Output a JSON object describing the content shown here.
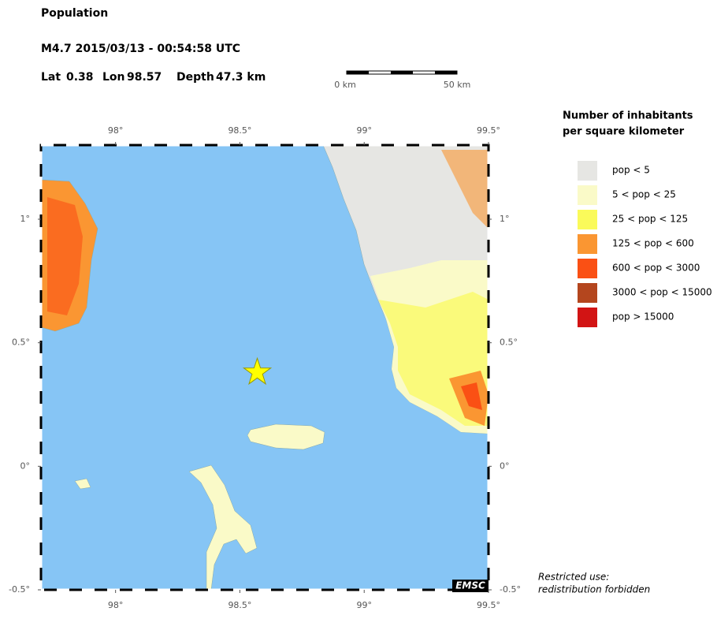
{
  "header": {
    "title": "Population",
    "event": "M4.7  2015/03/13 - 00:54:58 UTC",
    "lat_label": "Lat",
    "lat": 0.38,
    "lon_label": "Lon",
    "lon": 98.57,
    "depth_label": "Depth",
    "depth": "47.3 km"
  },
  "scale_bar": {
    "start": "0 km",
    "end": "50 km"
  },
  "map": {
    "xlim": [
      97.7,
      99.5
    ],
    "ylim": [
      -0.5,
      1.3
    ],
    "lon_ticks": [
      {
        "value": 98,
        "label": "98°"
      },
      {
        "value": 98.5,
        "label": "98.5°"
      },
      {
        "value": 99,
        "label": "99°"
      },
      {
        "value": 99.5,
        "label": "99.5°"
      }
    ],
    "lat_ticks": [
      {
        "value": 1,
        "label": "1°"
      },
      {
        "value": 0.5,
        "label": "0.5°"
      },
      {
        "value": 0,
        "label": "0°"
      },
      {
        "value": -0.5,
        "label": "-0.5°"
      }
    ],
    "credit": "EMSC"
  },
  "legend": {
    "title": [
      "Number of inhabitants",
      "per square kilometer"
    ],
    "items": [
      {
        "name": "pop < 5",
        "color": "#e6e6e3"
      },
      {
        "name": "5 < pop < 25",
        "color": "#fafac8"
      },
      {
        "name": "25 < pop < 125",
        "color": "#fafa5a"
      },
      {
        "name": "125 < pop < 600",
        "color": "#fa9632"
      },
      {
        "name": "600 < pop < 3000",
        "color": "#fa5014"
      },
      {
        "name": "3000 < pop < 15000",
        "color": "#b4461e"
      },
      {
        "name": "pop > 15000",
        "color": "#d21414"
      }
    ]
  },
  "notice": [
    "Restricted use:",
    "redistribution forbidden"
  ]
}
